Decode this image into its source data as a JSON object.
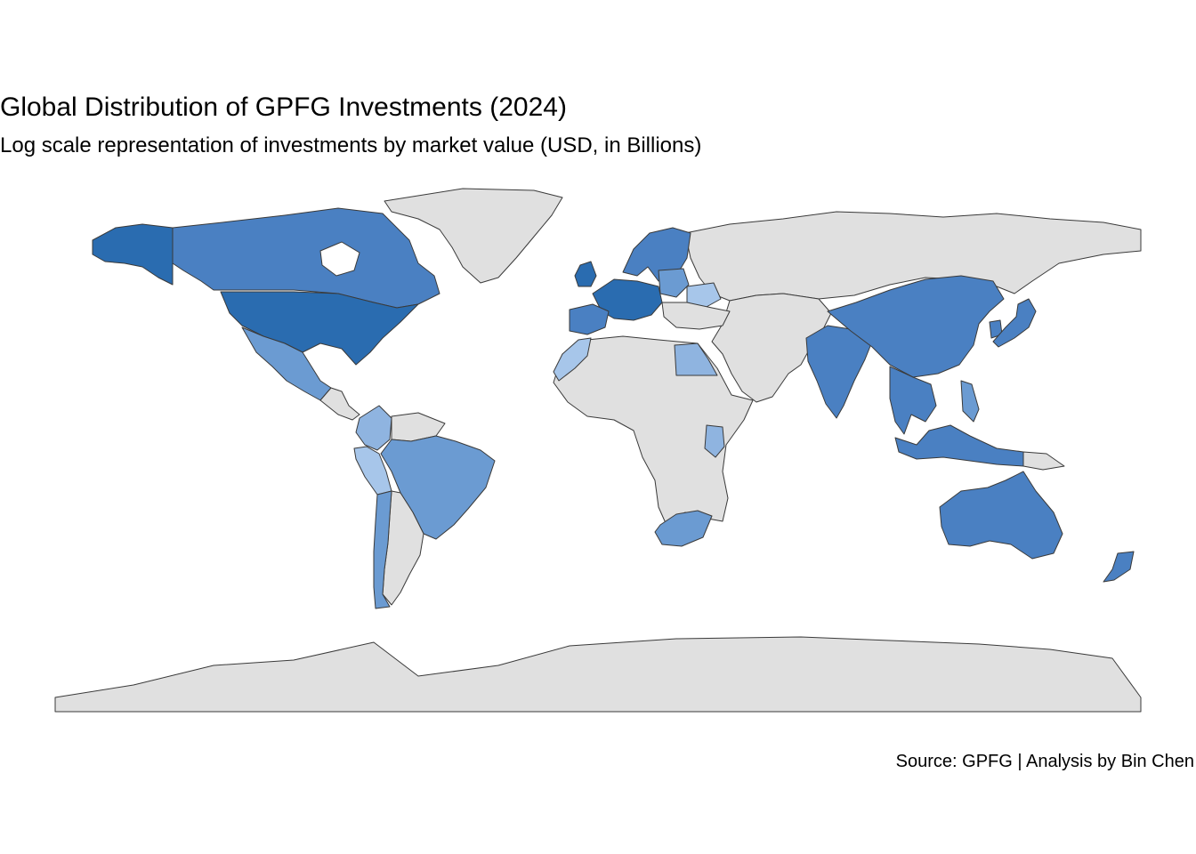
{
  "chart_data": {
    "type": "choropleth",
    "title": "Global Distribution of GPFG Investments (2024)",
    "subtitle": "Log scale representation of investments by market value (USD, in Billions)",
    "caption": "Source: GPFG | Analysis by Bin Chen",
    "scale": "log",
    "legend": "none",
    "colors": {
      "no_data": "#e0e0e0",
      "lightest": "#a7c6ea",
      "light": "#8fb4e0",
      "mid": "#6b9bd2",
      "strong": "#4a80c2",
      "darkest": "#2a6cb0",
      "border": "#3a3a3a"
    },
    "regions": [
      {
        "name": "United States",
        "level": "darkest"
      },
      {
        "name": "Alaska",
        "level": "darkest"
      },
      {
        "name": "Canada",
        "level": "strong"
      },
      {
        "name": "Greenland",
        "level": "no_data"
      },
      {
        "name": "Mexico",
        "level": "mid"
      },
      {
        "name": "Colombia",
        "level": "light"
      },
      {
        "name": "Peru",
        "level": "lightest"
      },
      {
        "name": "Brazil",
        "level": "mid"
      },
      {
        "name": "Chile",
        "level": "mid"
      },
      {
        "name": "Argentina",
        "level": "no_data"
      },
      {
        "name": "United Kingdom",
        "level": "darkest"
      },
      {
        "name": "Western Europe",
        "level": "darkest"
      },
      {
        "name": "Spain",
        "level": "strong"
      },
      {
        "name": "Scandinavia",
        "level": "strong"
      },
      {
        "name": "Poland",
        "level": "mid"
      },
      {
        "name": "Ukraine",
        "level": "lightest"
      },
      {
        "name": "Russia",
        "level": "no_data"
      },
      {
        "name": "Morocco",
        "level": "lightest"
      },
      {
        "name": "Egypt",
        "level": "light"
      },
      {
        "name": "Africa",
        "level": "no_data"
      },
      {
        "name": "Kenya",
        "level": "light"
      },
      {
        "name": "South Africa",
        "level": "mid"
      },
      {
        "name": "Middle East",
        "level": "no_data"
      },
      {
        "name": "India",
        "level": "strong"
      },
      {
        "name": "China",
        "level": "strong"
      },
      {
        "name": "Japan",
        "level": "strong"
      },
      {
        "name": "South Korea",
        "level": "strong"
      },
      {
        "name": "Southeast Asia",
        "level": "strong"
      },
      {
        "name": "Indonesia",
        "level": "strong"
      },
      {
        "name": "Philippines",
        "level": "mid"
      },
      {
        "name": "Australia",
        "level": "strong"
      },
      {
        "name": "New Zealand",
        "level": "strong"
      },
      {
        "name": "Antarctica",
        "level": "no_data"
      }
    ]
  }
}
